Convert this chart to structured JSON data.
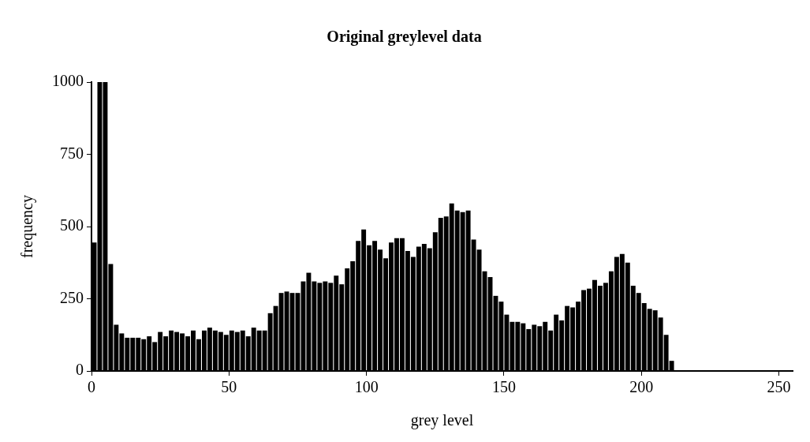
{
  "chart_data": {
    "type": "histogram",
    "title": "Original greylevel data",
    "xlabel": "grey level",
    "ylabel": "frequency",
    "bins": [
      0,
      2,
      4,
      6,
      8,
      10,
      12,
      14,
      16,
      18,
      20,
      22,
      24,
      26,
      28,
      30,
      32,
      34,
      36,
      38,
      40,
      42,
      44,
      46,
      48,
      50,
      52,
      54,
      56,
      58,
      60,
      62,
      64,
      66,
      68,
      70,
      72,
      74,
      76,
      78,
      80,
      82,
      84,
      86,
      88,
      90,
      92,
      94,
      96,
      98,
      100,
      102,
      104,
      106,
      108,
      110,
      112,
      114,
      116,
      118,
      120,
      122,
      124,
      126,
      128,
      130,
      132,
      134,
      136,
      138,
      140,
      142,
      144,
      146,
      148,
      150,
      152,
      154,
      156,
      158,
      160,
      162,
      164,
      166,
      168,
      170,
      172,
      174,
      176,
      178,
      180,
      182,
      184,
      186,
      188,
      190,
      192,
      194,
      196,
      198,
      200,
      202,
      204,
      206,
      208,
      210,
      212
    ],
    "values": [
      445,
      1000,
      1000,
      370,
      160,
      130,
      115,
      115,
      115,
      110,
      120,
      100,
      135,
      120,
      140,
      135,
      130,
      120,
      140,
      110,
      140,
      150,
      140,
      135,
      125,
      140,
      135,
      140,
      120,
      150,
      140,
      140,
      200,
      225,
      270,
      275,
      270,
      270,
      310,
      340,
      310,
      305,
      310,
      305,
      330,
      300,
      355,
      380,
      450,
      490,
      435,
      450,
      420,
      390,
      445,
      460,
      460,
      415,
      395,
      430,
      440,
      425,
      480,
      530,
      535,
      580,
      555,
      550,
      555,
      455,
      420,
      345,
      325,
      260,
      240,
      195,
      170,
      170,
      165,
      145,
      160,
      155,
      170,
      140,
      195,
      175,
      225,
      220,
      240,
      280,
      285,
      315,
      295,
      305,
      345,
      395,
      405,
      375,
      295,
      270,
      235,
      215,
      210,
      185,
      125,
      35
    ],
    "color": "#000000",
    "xlim": [
      0,
      255
    ],
    "xticks": [
      0,
      50,
      100,
      150,
      200,
      250
    ],
    "ylim": [
      0,
      1000
    ],
    "yticks": [
      0,
      250,
      500,
      750,
      1000
    ],
    "grid": false,
    "legend": false
  }
}
